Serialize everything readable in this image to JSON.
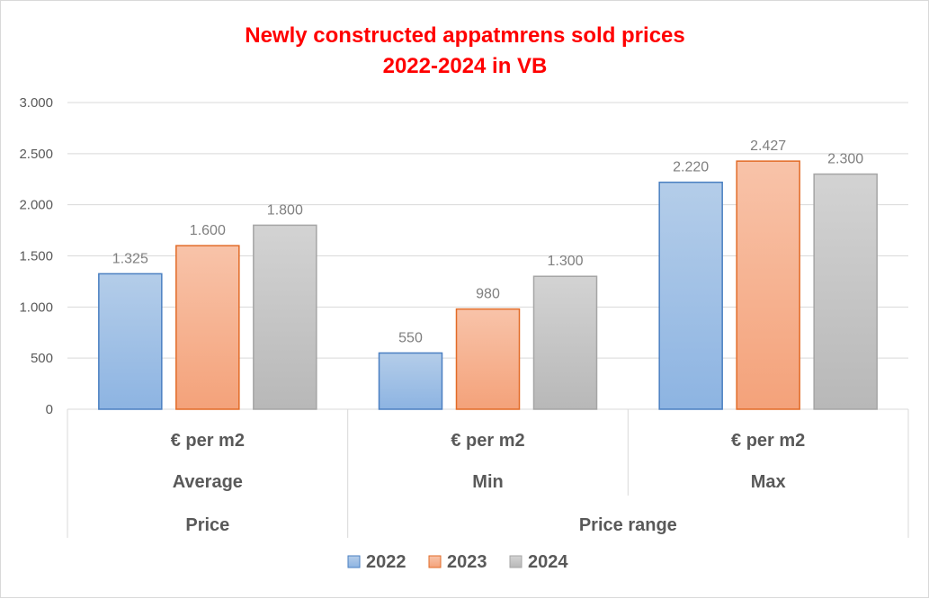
{
  "chart_data": {
    "type": "bar",
    "title_lines": [
      "Newly constructed appatmrens sold prices",
      "2022-2024 in VB"
    ],
    "title": "Newly constructed appatmrens sold prices 2022-2024 in VB",
    "categories": [
      {
        "level1": "€ per m2",
        "level2": "Average",
        "level3": "Price"
      },
      {
        "level1": "€ per m2",
        "level2": "Min",
        "level3": "Price range"
      },
      {
        "level1": "€ per m2",
        "level2": "Max",
        "level3": "Price range"
      }
    ],
    "category_level3_groups": [
      {
        "label": "Price",
        "span": 1
      },
      {
        "label": "Price range",
        "span": 2
      }
    ],
    "series": [
      {
        "name": "2022",
        "values": [
          1325,
          550,
          2220
        ],
        "labels": [
          "1.325",
          "550",
          "2.220"
        ]
      },
      {
        "name": "2023",
        "values": [
          1600,
          980,
          2427
        ],
        "labels": [
          "1.600",
          "980",
          "2.427"
        ]
      },
      {
        "name": "2024",
        "values": [
          1800,
          1300,
          2300
        ],
        "labels": [
          "1.800",
          "1.300",
          "2.300"
        ]
      }
    ],
    "ylim": [
      0,
      3000
    ],
    "yticks": [
      0,
      500,
      1000,
      1500,
      2000,
      2500,
      3000
    ],
    "ytick_labels": [
      "0",
      "500",
      "1.000",
      "1.500",
      "2.000",
      "2.500",
      "3.000"
    ],
    "grid": true,
    "legend_position": "bottom",
    "xlabel": "",
    "ylabel": ""
  },
  "colors": {
    "title": "#ff0000",
    "series": [
      {
        "top": "#b4cde9",
        "bottom": "#8db4e2",
        "border": "#4a7fc1"
      },
      {
        "top": "#f8c3a9",
        "bottom": "#f4a27a",
        "border": "#e26b27"
      },
      {
        "top": "#d3d3d3",
        "bottom": "#b8b8b8",
        "border": "#a5a5a5"
      }
    ],
    "grid": "#d9d9d9",
    "text": "#595959",
    "label": "#7f7f7f"
  }
}
